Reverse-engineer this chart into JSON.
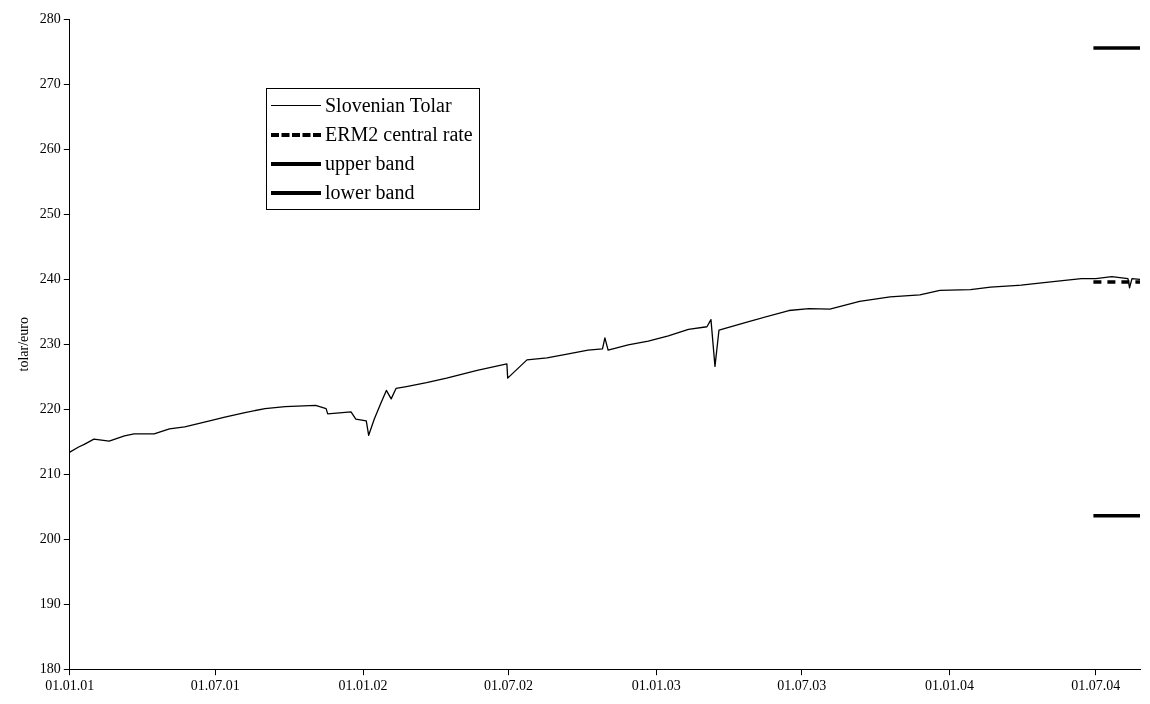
{
  "chart_data": {
    "type": "line",
    "ylabel": "tolar/euro",
    "ylim": [
      180,
      280
    ],
    "yticks": [
      180,
      190,
      200,
      210,
      220,
      230,
      240,
      250,
      260,
      270,
      280
    ],
    "xlim": [
      "2001-01-01",
      "2004-08-25"
    ],
    "xticks": [
      {
        "value": "2001-01-01",
        "label": "01.01.01"
      },
      {
        "value": "2001-07-01",
        "label": "01.07.01"
      },
      {
        "value": "2002-01-01",
        "label": "01.01.02"
      },
      {
        "value": "2002-07-01",
        "label": "01.07.02"
      },
      {
        "value": "2003-01-01",
        "label": "01.01.03"
      },
      {
        "value": "2003-07-01",
        "label": "01.07.03"
      },
      {
        "value": "2004-01-01",
        "label": "01.01.04"
      },
      {
        "value": "2004-07-01",
        "label": "01.07.04"
      }
    ],
    "grid": false,
    "legend": "top left",
    "marker": "none",
    "series": [
      {
        "name": "Slovenian Tolar",
        "color": "#000000",
        "line_style": "solid",
        "x": [
          "2001-01-01",
          "2001-01-12",
          "2001-01-19",
          "2001-01-31",
          "2001-02-19",
          "2001-03-10",
          "2001-03-22",
          "2001-04-16",
          "2001-05-05",
          "2001-05-24",
          "2001-06-24",
          "2001-07-13",
          "2001-08-07",
          "2001-09-01",
          "2001-09-26",
          "2001-11-03",
          "2001-11-16",
          "2001-11-18",
          "2001-12-17",
          "2001-12-23",
          "2002-01-05",
          "2002-01-08",
          "2002-01-15",
          "2002-01-23",
          "2002-01-30",
          "2002-02-05",
          "2002-02-11",
          "2002-02-24",
          "2002-03-21",
          "2002-04-15",
          "2002-05-23",
          "2002-06-29",
          "2002-06-30",
          "2002-07-24",
          "2002-08-18",
          "2002-09-12",
          "2002-10-08",
          "2002-10-26",
          "2002-10-29",
          "2002-11-02",
          "2002-11-27",
          "2002-12-22",
          "2003-01-16",
          "2003-02-10",
          "2003-03-05",
          "2003-03-10",
          "2003-03-15",
          "2003-03-20",
          "2003-04-26",
          "2003-06-15",
          "2003-07-10",
          "2003-08-05",
          "2003-09-11",
          "2003-10-19",
          "2003-11-25",
          "2003-12-20",
          "2004-01-27",
          "2004-02-21",
          "2004-03-30",
          "2004-05-06",
          "2004-06-13",
          "2004-07-01",
          "2004-07-21",
          "2004-08-10",
          "2004-08-12",
          "2004-08-15",
          "2004-08-25"
        ],
        "values": [
          213.4,
          214.2,
          214.6,
          215.4,
          215.1,
          215.9,
          216.2,
          216.2,
          217.0,
          217.3,
          218.2,
          218.8,
          219.5,
          220.1,
          220.4,
          220.6,
          220.1,
          219.3,
          219.6,
          218.5,
          218.2,
          216.0,
          218.5,
          220.9,
          222.9,
          221.6,
          223.2,
          223.5,
          224.1,
          224.8,
          226.0,
          227.0,
          224.8,
          227.6,
          227.9,
          228.5,
          229.1,
          229.3,
          231.0,
          229.1,
          229.9,
          230.5,
          231.3,
          232.3,
          232.7,
          233.8,
          226.6,
          232.2,
          233.5,
          235.2,
          235.5,
          235.4,
          236.6,
          237.3,
          237.6,
          238.3,
          238.4,
          238.8,
          239.1,
          239.6,
          240.1,
          240.1,
          240.4,
          240.1,
          238.7,
          240.1,
          240.0
        ]
      },
      {
        "name": "ERM2 central rate",
        "color": "#000000",
        "line_style": "dashed",
        "x": [
          "2004-06-28",
          "2004-08-25"
        ],
        "values": [
          239.6,
          239.6
        ]
      },
      {
        "name": "upper band",
        "color": "#000000",
        "line_style": "solid",
        "x": [
          "2004-06-28",
          "2004-08-25"
        ],
        "values": [
          275.6,
          275.6
        ]
      },
      {
        "name": "lower band",
        "color": "#000000",
        "line_style": "solid",
        "x": [
          "2004-06-28",
          "2004-08-25"
        ],
        "values": [
          203.6,
          203.6
        ]
      }
    ]
  }
}
